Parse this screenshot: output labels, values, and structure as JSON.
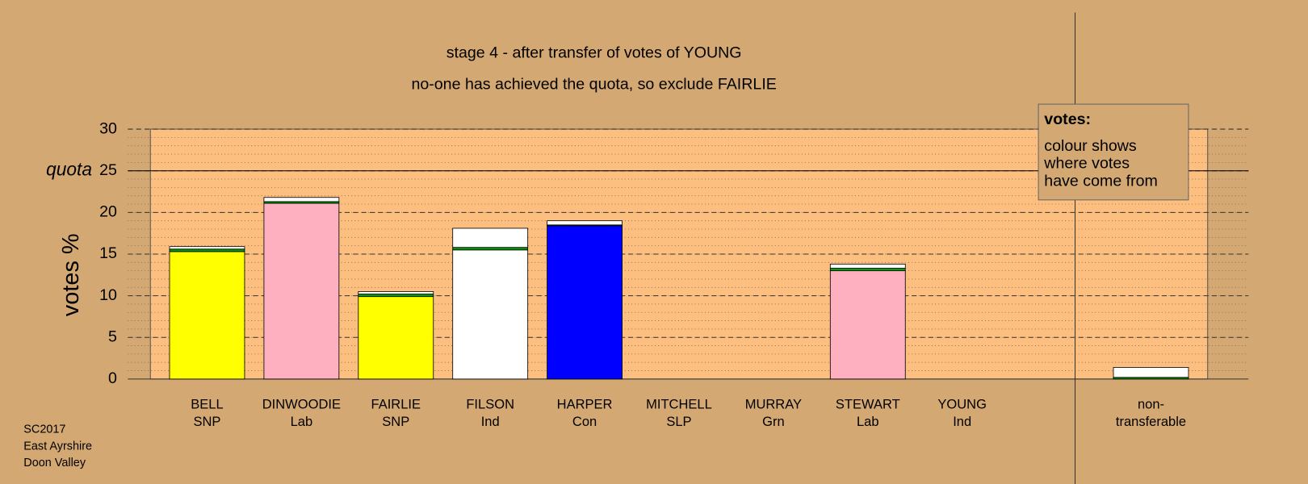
{
  "chart_data": {
    "type": "stacked-bar",
    "title": "stage 4 - after transfer of votes of YOUNG",
    "subtitle": "no-one has achieved the quota, so exclude FAIRLIE",
    "y_label": "votes %",
    "quota": {
      "label": "quota",
      "value": 25
    },
    "categories": [
      "BELL",
      "DINWOODIE",
      "FAIRLIE",
      "FILSON",
      "HARPER",
      "MITCHELL",
      "MURRAY",
      "STEWART",
      "YOUNG",
      null,
      "non-"
    ],
    "category_sublabels": [
      "SNP",
      "Lab",
      "SNP",
      "Ind",
      "Con",
      "SLP",
      "Grn",
      "Lab",
      "Ind",
      null,
      "transferable"
    ],
    "series": [
      {
        "color": "#ffff00",
        "values": [
          15.3,
          0,
          9.9,
          0,
          0,
          0,
          0,
          0,
          0,
          null,
          0
        ]
      },
      {
        "color": "#ffb0c0",
        "values": [
          0,
          21.1,
          0,
          0,
          0,
          0,
          0,
          13.0,
          0,
          null,
          0
        ]
      },
      {
        "color": "#ffffff",
        "values": [
          0,
          0,
          0,
          15.5,
          0,
          0,
          0,
          0,
          0,
          null,
          0
        ]
      },
      {
        "color": "#0000ff",
        "values": [
          0,
          0,
          0,
          0,
          18.4,
          0,
          0,
          0,
          0,
          null,
          0
        ]
      },
      {
        "color": "#00a000",
        "values": [
          0.3,
          0.2,
          0.3,
          0.3,
          0.1,
          0,
          0,
          0.3,
          0,
          null,
          0.2
        ]
      },
      {
        "color": "#ffffff",
        "values": [
          0.3,
          0.5,
          0.3,
          2.3,
          0.5,
          0,
          0,
          0.5,
          0,
          null,
          1.2
        ]
      }
    ],
    "ylim": [
      0,
      30
    ],
    "yticks": [
      0,
      5,
      10,
      15,
      20,
      25,
      30
    ],
    "minor_grid_step": 1,
    "grid": true,
    "legend": {
      "title": "votes:",
      "lines": [
        "colour shows",
        "where votes",
        "have come from"
      ]
    },
    "footer": [
      "SC2017",
      "East Ayrshire",
      "Doon Valley"
    ]
  }
}
